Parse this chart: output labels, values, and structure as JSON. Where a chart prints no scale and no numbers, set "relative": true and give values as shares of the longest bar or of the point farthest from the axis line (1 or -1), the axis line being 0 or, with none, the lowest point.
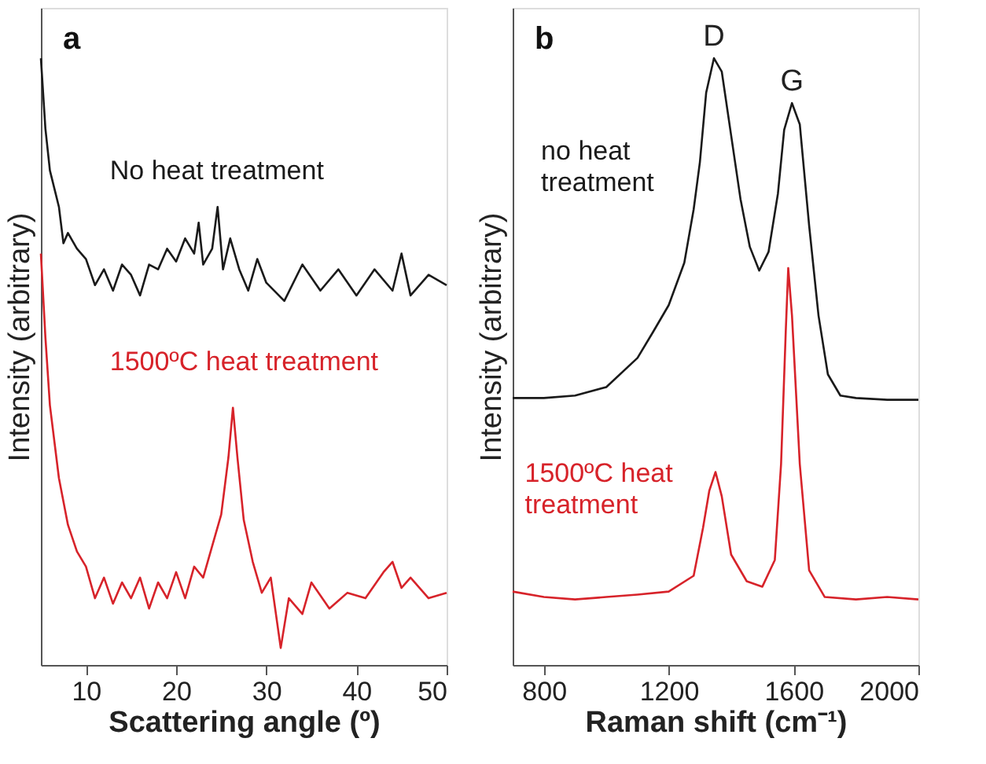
{
  "chart_data": [
    {
      "type": "line",
      "title": "a",
      "relative": true,
      "xlabel": "Scattering angle (º)",
      "ylabel": "Intensity (arbitrary)",
      "xlim": [
        5,
        50
      ],
      "xticks": [
        10,
        20,
        30,
        40,
        50
      ],
      "tick_labels": "x",
      "grid": false,
      "series": [
        {
          "name": "No heat treatment",
          "color": "#1a1a1a",
          "x": [
            5,
            5.5,
            6,
            7,
            7.5,
            8,
            9,
            10,
            11,
            12,
            13,
            14,
            15,
            16,
            17,
            18,
            19,
            20,
            21,
            22,
            22.5,
            23,
            24,
            24.6,
            25.2,
            26,
            27,
            28,
            29,
            30,
            32,
            34,
            36,
            38,
            40,
            42,
            44,
            45,
            46,
            48,
            50
          ],
          "values": [
            1.0,
            0.884,
            0.815,
            0.755,
            0.695,
            0.712,
            0.686,
            0.669,
            0.626,
            0.652,
            0.617,
            0.66,
            0.643,
            0.609,
            0.66,
            0.652,
            0.686,
            0.665,
            0.703,
            0.678,
            0.729,
            0.66,
            0.686,
            0.755,
            0.652,
            0.703,
            0.652,
            0.617,
            0.669,
            0.63,
            0.6,
            0.66,
            0.617,
            0.652,
            0.609,
            0.652,
            0.617,
            0.678,
            0.609,
            0.643,
            0.626
          ]
        },
        {
          "name": "1500ºC heat treatment",
          "color": "#d7232a",
          "x": [
            5,
            5.5,
            6,
            7,
            8,
            9,
            10,
            11,
            12,
            13,
            14,
            15,
            16,
            17,
            18,
            19,
            20,
            21,
            22,
            23,
            24,
            25,
            25.8,
            26.3,
            26.8,
            27.5,
            28.5,
            29.5,
            30.5,
            31.6,
            32.5,
            34,
            35,
            37,
            39,
            41,
            43,
            44,
            45,
            46,
            48,
            50
          ],
          "values": [
            0.678,
            0.54,
            0.428,
            0.308,
            0.231,
            0.187,
            0.162,
            0.11,
            0.144,
            0.101,
            0.136,
            0.11,
            0.144,
            0.093,
            0.136,
            0.11,
            0.153,
            0.11,
            0.162,
            0.144,
            0.196,
            0.248,
            0.342,
            0.424,
            0.342,
            0.239,
            0.17,
            0.119,
            0.144,
            0.028,
            0.11,
            0.084,
            0.136,
            0.093,
            0.119,
            0.11,
            0.153,
            0.17,
            0.127,
            0.144,
            0.11,
            0.119
          ]
        }
      ]
    },
    {
      "type": "line",
      "title": "b",
      "relative": true,
      "xlabel": "Raman shift (cm⁻¹)",
      "ylabel": "Intensity (arbitrary)",
      "xlim": [
        700,
        2000
      ],
      "xticks": [
        800,
        1200,
        1600,
        2000
      ],
      "tick_labels": "x",
      "grid": false,
      "annotations": [
        {
          "text": "D",
          "x": 1345,
          "y": 1.0
        },
        {
          "text": "G",
          "x": 1595,
          "y": 0.926
        }
      ],
      "series": [
        {
          "name": "no heat treatment",
          "color": "#1a1a1a",
          "x": [
            700,
            800,
            900,
            1000,
            1100,
            1150,
            1200,
            1250,
            1280,
            1300,
            1320,
            1345,
            1370,
            1400,
            1430,
            1460,
            1490,
            1520,
            1550,
            1570,
            1595,
            1620,
            1650,
            1680,
            1710,
            1750,
            1800,
            1900,
            2000
          ],
          "values": [
            0.44,
            0.44,
            0.444,
            0.458,
            0.506,
            0.549,
            0.593,
            0.663,
            0.751,
            0.829,
            0.943,
            1.0,
            0.978,
            0.873,
            0.768,
            0.689,
            0.65,
            0.681,
            0.777,
            0.882,
            0.926,
            0.891,
            0.724,
            0.576,
            0.479,
            0.444,
            0.44,
            0.437,
            0.437
          ]
        },
        {
          "name": "1500ºC heat treatment",
          "color": "#d7232a",
          "x": [
            700,
            800,
            900,
            1000,
            1100,
            1200,
            1280,
            1310,
            1330,
            1350,
            1370,
            1400,
            1450,
            1500,
            1540,
            1560,
            1575,
            1583,
            1595,
            1620,
            1650,
            1700,
            1800,
            1900,
            2000
          ],
          "values": [
            0.121,
            0.112,
            0.108,
            0.112,
            0.116,
            0.121,
            0.147,
            0.226,
            0.287,
            0.318,
            0.278,
            0.182,
            0.138,
            0.129,
            0.173,
            0.331,
            0.549,
            0.654,
            0.576,
            0.331,
            0.156,
            0.112,
            0.108,
            0.112,
            0.108
          ]
        }
      ]
    }
  ]
}
